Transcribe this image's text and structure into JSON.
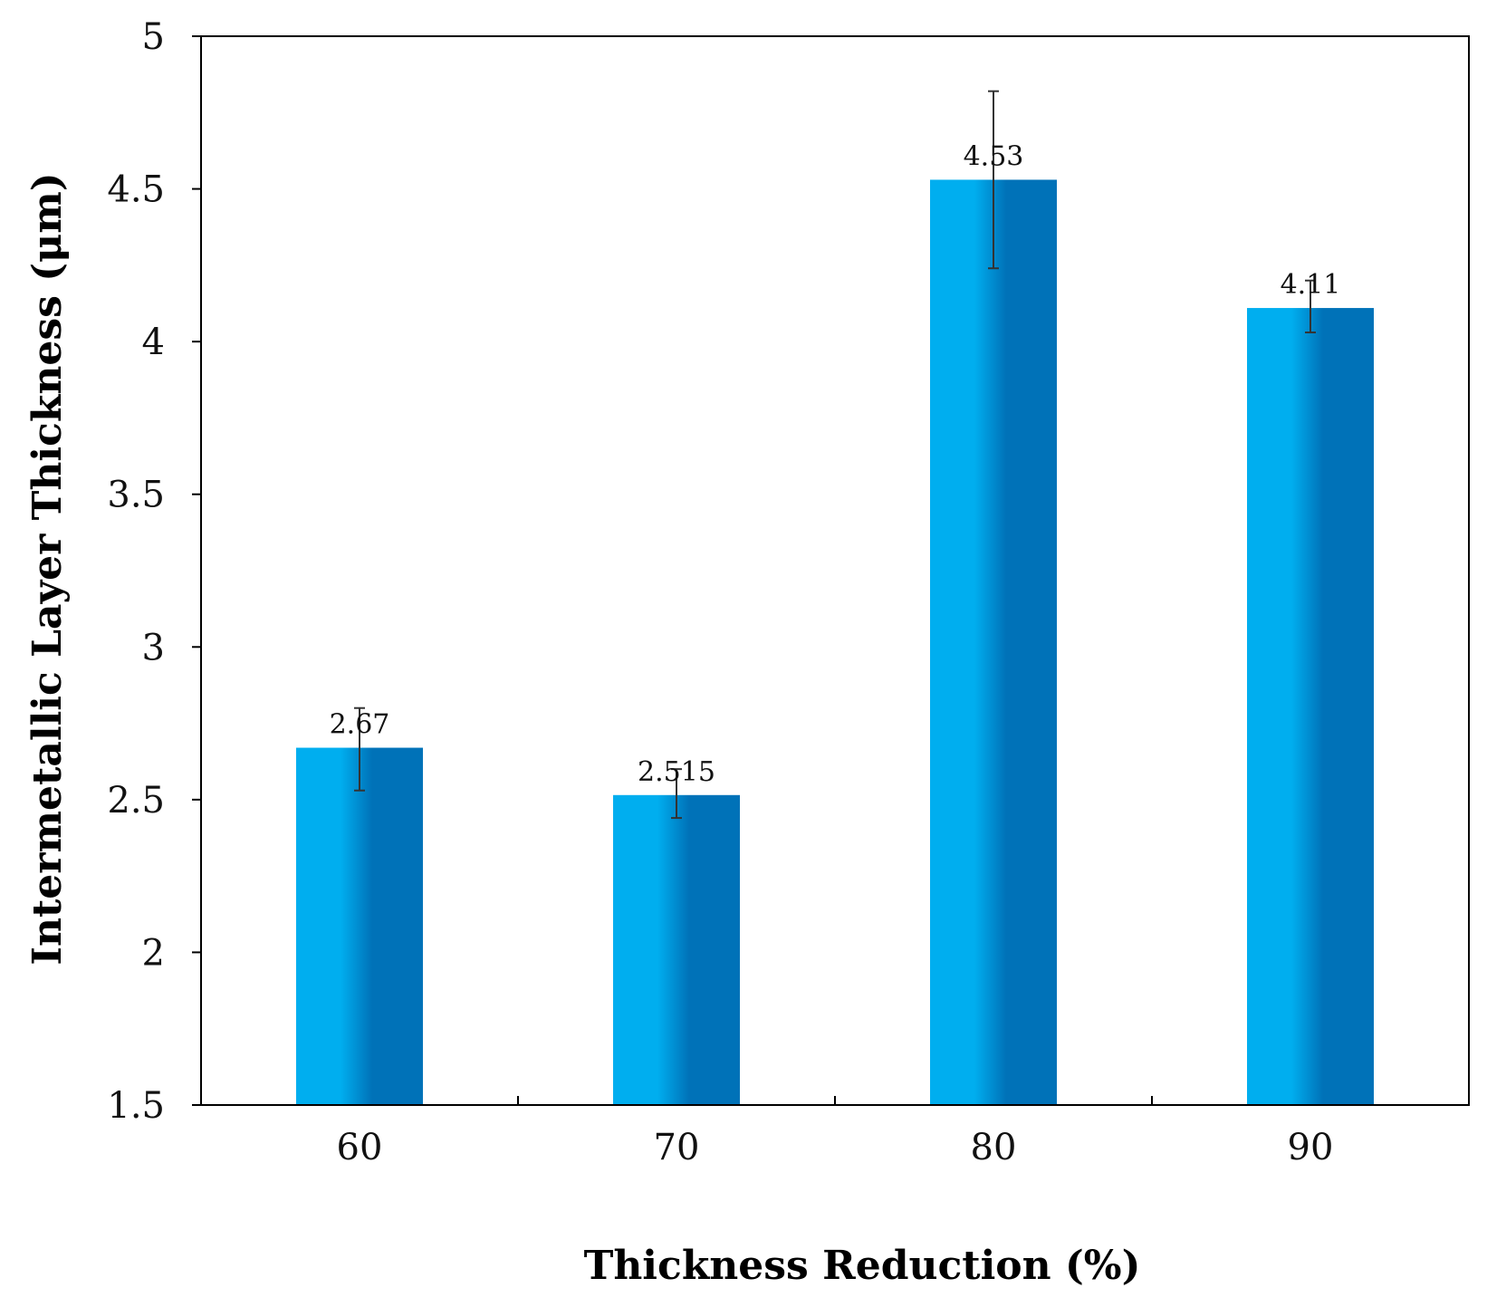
{
  "chart_data": {
    "type": "bar",
    "categories": [
      "60",
      "70",
      "80",
      "90"
    ],
    "values": [
      2.67,
      2.515,
      4.53,
      4.11
    ],
    "value_labels": [
      "2.67",
      "2.515",
      "4.53",
      "4.11"
    ],
    "error_bars": [
      {
        "low": 2.53,
        "high": 2.8
      },
      {
        "low": 2.44,
        "high": 2.6
      },
      {
        "low": 4.24,
        "high": 4.82
      },
      {
        "low": 4.03,
        "high": 4.2
      }
    ],
    "y_ticks": [
      "1.5",
      "2",
      "2.5",
      "3",
      "3.5",
      "4",
      "4.5",
      "5"
    ],
    "ylim": [
      1.5,
      5
    ],
    "xlabel": "Thickness Reduction (%)",
    "ylabel": "Intermetallic Layer Thickness (μm)",
    "grid": false,
    "colors": {
      "bar_light": "#00AEEF",
      "bar_dark": "#0072B8",
      "axis": "#000000",
      "error_bar": "#333333"
    }
  }
}
